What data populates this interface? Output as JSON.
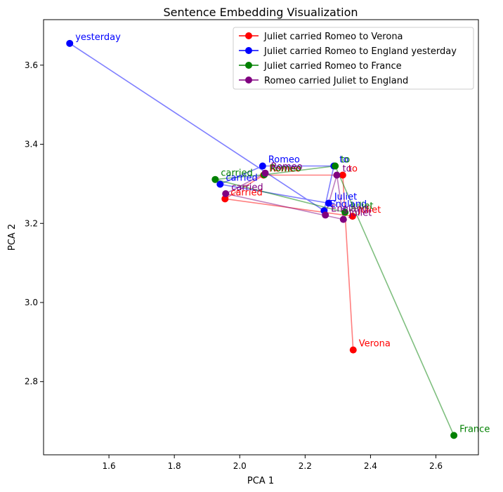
{
  "chart_data": {
    "type": "line",
    "title": "Sentence Embedding Visualization",
    "xlabel": "PCA 1",
    "ylabel": "PCA 2",
    "xlim": [
      1.4,
      2.73
    ],
    "ylim": [
      2.615,
      3.715
    ],
    "xticks": [
      1.6,
      1.8,
      2.0,
      2.2,
      2.4,
      2.6
    ],
    "yticks": [
      2.8,
      3.0,
      3.2,
      3.4,
      3.6
    ],
    "xtick_labels": [
      "1.6",
      "1.8",
      "2.0",
      "2.2",
      "2.4",
      "2.6"
    ],
    "ytick_labels": [
      "2.8",
      "3.0",
      "3.2",
      "3.4",
      "3.6"
    ],
    "grid": false,
    "legend_position": "top-right",
    "series": [
      {
        "name": "Juliet carried Romeo to Verona",
        "color": "#ff0000",
        "points": [
          {
            "x": 2.345,
            "y": 3.218,
            "label": "Juliet"
          },
          {
            "x": 1.955,
            "y": 3.262,
            "label": "carried"
          },
          {
            "x": 2.073,
            "y": 3.322,
            "label": "Romeo"
          },
          {
            "x": 2.315,
            "y": 3.322,
            "label": "to"
          },
          {
            "x": 2.347,
            "y": 2.88,
            "label": "Verona"
          }
        ]
      },
      {
        "name": "Juliet carried Romeo to England yesterday",
        "color": "#0000ff",
        "points": [
          {
            "x": 2.272,
            "y": 3.251,
            "label": "Juliet"
          },
          {
            "x": 1.94,
            "y": 3.299,
            "label": "carried"
          },
          {
            "x": 2.07,
            "y": 3.345,
            "label": "Romeo"
          },
          {
            "x": 2.288,
            "y": 3.345,
            "label": "to"
          },
          {
            "x": 2.258,
            "y": 3.232,
            "label": "England"
          },
          {
            "x": 1.48,
            "y": 3.655,
            "label": "yesterday"
          }
        ]
      },
      {
        "name": "Juliet carried Romeo to France",
        "color": "#008000",
        "points": [
          {
            "x": 2.322,
            "y": 3.228,
            "label": "Juliet"
          },
          {
            "x": 1.925,
            "y": 3.311,
            "label": "carried"
          },
          {
            "x": 2.075,
            "y": 3.323,
            "label": "Romeo"
          },
          {
            "x": 2.292,
            "y": 3.345,
            "label": "to"
          },
          {
            "x": 2.655,
            "y": 2.664,
            "label": "France"
          }
        ]
      },
      {
        "name": "Romeo carried Juliet to England",
        "color": "#800080",
        "points": [
          {
            "x": 2.078,
            "y": 3.327,
            "label": "Romeo"
          },
          {
            "x": 1.957,
            "y": 3.275,
            "label": "carried"
          },
          {
            "x": 2.317,
            "y": 3.21,
            "label": "Juliet"
          },
          {
            "x": 2.297,
            "y": 3.322,
            "label": "to"
          },
          {
            "x": 2.262,
            "y": 3.221,
            "label": "England"
          }
        ]
      }
    ]
  }
}
